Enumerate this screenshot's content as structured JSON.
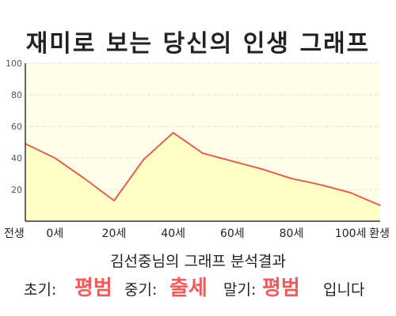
{
  "title": "재미로 보는 당신의 인생 그래프",
  "chart_data": {
    "type": "area",
    "title": "재미로 보는 당신의 인생 그래프",
    "xlabel": "",
    "ylabel": "",
    "ylim": [
      0,
      100
    ],
    "y_ticks": [
      20,
      40,
      60,
      80,
      100
    ],
    "x_tick_labels": [
      "전생",
      "0세",
      "20세",
      "40세",
      "60세",
      "80세",
      "100세",
      "환생"
    ],
    "x": [
      "전생",
      "0세",
      "10세",
      "20세",
      "30세",
      "40세",
      "50세",
      "60세",
      "70세",
      "80세",
      "90세",
      "100세",
      "환생"
    ],
    "series": [
      {
        "name": "",
        "values": [
          49,
          40,
          27,
          13,
          39,
          56,
          43,
          38,
          33,
          27,
          23,
          18,
          10
        ]
      }
    ],
    "grid": true,
    "line_color": "#e0605a",
    "fill_color": "#ffffc6"
  },
  "result": {
    "title": "김선중님의 그래프 분석결과",
    "early_label": "초기:",
    "early_value": "평범",
    "middle_label": "중기:",
    "middle_value": "출세",
    "late_label": "말기:",
    "late_value": "평범",
    "ending": "입니다"
  },
  "colors": {
    "accent": "#ef5b5b",
    "axis": "#333333",
    "grid": "#e5e5d0",
    "plot_background": "#ffffe9"
  }
}
